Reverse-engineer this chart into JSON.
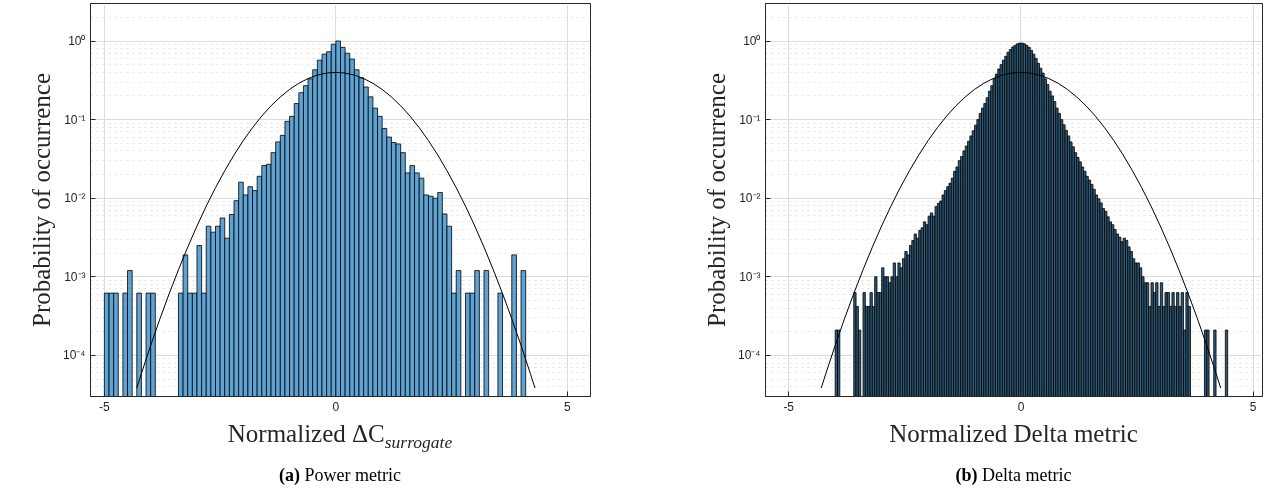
{
  "chart_data": [
    {
      "type": "histogram",
      "title": "(a) Power metric",
      "xlabel": "Normalized ΔC$_{surrogate}$",
      "ylabel": "Probability of occurrence",
      "color": "#5ea3d3",
      "log": true,
      "grid": true,
      "xlim": [
        -5.3,
        5.5
      ],
      "xticks": [
        -5,
        0,
        5
      ],
      "ylim": [
        3e-05,
        3
      ],
      "yticks": [
        {
          "value": 0.0001,
          "label": "10⁻⁴"
        },
        {
          "value": 0.001,
          "label": "10⁻³"
        },
        {
          "value": 0.01,
          "label": "10⁻²"
        },
        {
          "value": 0.1,
          "label": "10⁻¹"
        },
        {
          "value": 1,
          "label": "10⁰"
        }
      ],
      "bins": [
        -5.0,
        -4.9,
        -4.8,
        -4.7,
        -4.6,
        -4.5,
        -4.4,
        -4.3,
        -4.2,
        -4.1,
        -4.0,
        -3.9,
        -3.8,
        -3.7,
        -3.6,
        -3.5,
        -3.4,
        -3.3,
        -3.2,
        -3.1,
        -3.0,
        -2.9,
        -2.8,
        -2.7,
        -2.6,
        -2.5,
        -2.4,
        -2.3,
        -2.2,
        -2.1,
        -2.0,
        -1.9,
        -1.8,
        -1.7,
        -1.6,
        -1.5,
        -1.4,
        -1.3,
        -1.2,
        -1.1,
        -1.0,
        -0.9,
        -0.8,
        -0.7,
        -0.6,
        -0.5,
        -0.4,
        -0.3,
        -0.2,
        -0.1,
        0.0,
        0.1,
        0.2,
        0.3,
        0.4,
        0.5,
        0.6,
        0.7,
        0.8,
        0.9,
        1.0,
        1.1,
        1.2,
        1.3,
        1.4,
        1.5,
        1.6,
        1.7,
        1.8,
        1.9,
        2.0,
        2.1,
        2.2,
        2.3,
        2.4,
        2.5,
        2.6,
        2.7,
        2.8,
        2.9,
        3.0,
        3.1,
        3.2,
        3.3,
        3.4,
        3.5,
        3.6,
        3.7,
        3.8,
        3.9,
        4.0,
        4.1
      ],
      "values": [
        0.00062,
        0.00062,
        0.00062,
        null,
        0.00062,
        0.0012,
        null,
        0.00062,
        null,
        0.00062,
        0.00062,
        null,
        null,
        null,
        null,
        null,
        0.00062,
        0.0019,
        0.00062,
        0.00062,
        0.0025,
        0.00062,
        0.0044,
        0.0037,
        0.0044,
        0.0056,
        0.0031,
        0.0062,
        0.0093,
        0.016,
        0.011,
        0.014,
        0.0125,
        0.019,
        0.026,
        0.027,
        0.038,
        0.052,
        0.063,
        0.095,
        0.11,
        0.16,
        0.22,
        0.27,
        0.33,
        0.43,
        0.57,
        0.68,
        0.73,
        0.91,
        1.0,
        0.83,
        0.7,
        0.59,
        0.43,
        0.34,
        0.26,
        0.195,
        0.14,
        0.11,
        0.077,
        0.06,
        0.051,
        0.049,
        0.038,
        0.021,
        0.026,
        0.021,
        0.018,
        0.011,
        0.0106,
        0.01,
        0.0118,
        0.0063,
        0.0044,
        0.00062,
        0.0012,
        null,
        0.00062,
        0.00062,
        0.0012,
        null,
        0.0012,
        null,
        null,
        0.00062,
        null,
        null,
        0.0019,
        null,
        0.0012
      ],
      "series": [
        {
          "type": "line",
          "color": "#000000",
          "x": [
            -4.3,
            -4.2,
            -4.0,
            -3.8,
            -3.6,
            -3.4,
            -3.2,
            -3.0,
            -2.8,
            -2.6,
            -2.4,
            -2.2,
            -2.0,
            -1.8,
            -1.6,
            -1.4,
            -1.2,
            -1.0,
            -0.8,
            -0.6,
            -0.4,
            -0.2,
            0,
            0.2,
            0.4,
            0.6,
            0.8,
            1.0,
            1.2,
            1.4,
            1.6,
            1.8,
            2.0,
            2.2,
            2.4,
            2.6,
            2.8,
            3.0,
            3.2,
            3.4,
            3.6,
            3.8,
            4.0,
            4.2,
            4.3
          ],
          "values": [
            3.85e-05,
            5.89e-05,
            0.000134,
            0.000292,
            0.000612,
            0.00123,
            0.00238,
            0.00443,
            0.00792,
            0.0136,
            0.0224,
            0.0355,
            0.054,
            0.079,
            0.111,
            0.15,
            0.194,
            0.242,
            0.29,
            0.333,
            0.368,
            0.391,
            0.399,
            0.391,
            0.368,
            0.333,
            0.29,
            0.242,
            0.194,
            0.15,
            0.111,
            0.079,
            0.054,
            0.0355,
            0.0224,
            0.0136,
            0.00792,
            0.00443,
            0.00238,
            0.00123,
            0.000612,
            0.000292,
            0.000134,
            5.89e-05,
            3.85e-05
          ]
        }
      ]
    },
    {
      "type": "histogram",
      "title": "(b) Delta metric",
      "xlabel": "Normalized Delta metric",
      "ylabel": "Probability of occurrence",
      "color": "#2f5b78",
      "log": true,
      "grid": true,
      "xlim": [
        -5.5,
        5.2
      ],
      "xticks": [
        -5,
        0,
        5
      ],
      "ylim": [
        3e-05,
        3
      ],
      "yticks": [
        {
          "value": 0.0001,
          "label": "10⁻⁴"
        },
        {
          "value": 0.001,
          "label": "10⁻³"
        },
        {
          "value": 0.01,
          "label": "10⁻²"
        },
        {
          "value": 0.1,
          "label": "10⁻¹"
        },
        {
          "value": 1,
          "label": "10⁰"
        }
      ],
      "bins": [
        -4.0,
        -3.95,
        -3.9,
        -3.85,
        -3.8,
        -3.75,
        -3.7,
        -3.65,
        -3.6,
        -3.55,
        -3.5,
        -3.45,
        -3.4,
        -3.35,
        -3.3,
        -3.25,
        -3.2,
        -3.15,
        -3.1,
        -3.05,
        -3.0,
        -2.95,
        -2.9,
        -2.85,
        -2.8,
        -2.75,
        -2.7,
        -2.65,
        -2.6,
        -2.55,
        -2.5,
        -2.45,
        -2.4,
        -2.35,
        -2.3,
        -2.25,
        -2.2,
        -2.15,
        -2.1,
        -2.05,
        -2.0,
        -1.95,
        -1.9,
        -1.85,
        -1.8,
        -1.75,
        -1.7,
        -1.65,
        -1.6,
        -1.55,
        -1.5,
        -1.45,
        -1.4,
        -1.35,
        -1.3,
        -1.25,
        -1.2,
        -1.15,
        -1.1,
        -1.05,
        -1.0,
        -0.95,
        -0.9,
        -0.85,
        -0.8,
        -0.75,
        -0.7,
        -0.65,
        -0.6,
        -0.55,
        -0.5,
        -0.45,
        -0.4,
        -0.35,
        -0.3,
        -0.25,
        -0.2,
        -0.15,
        -0.1,
        -0.05,
        0.0,
        0.05,
        0.1,
        0.15,
        0.2,
        0.25,
        0.3,
        0.35,
        0.4,
        0.45,
        0.5,
        0.55,
        0.6,
        0.65,
        0.7,
        0.75,
        0.8,
        0.85,
        0.9,
        0.95,
        1.0,
        1.05,
        1.1,
        1.15,
        1.2,
        1.25,
        1.3,
        1.35,
        1.4,
        1.45,
        1.5,
        1.55,
        1.6,
        1.65,
        1.7,
        1.75,
        1.8,
        1.85,
        1.9,
        1.95,
        2.0,
        2.05,
        2.1,
        2.15,
        2.2,
        2.25,
        2.3,
        2.35,
        2.4,
        2.45,
        2.5,
        2.55,
        2.6,
        2.65,
        2.7,
        2.75,
        2.8,
        2.85,
        2.9,
        2.95,
        3.0,
        3.05,
        3.1,
        3.15,
        3.2,
        3.25,
        3.3,
        3.35,
        3.4,
        3.45,
        3.5,
        3.55,
        3.6,
        3.65,
        3.7,
        3.75,
        3.8,
        3.85,
        3.9,
        3.95,
        4.0,
        4.05,
        4.1,
        4.15,
        4.2,
        4.25,
        4.3,
        4.35,
        4.4,
        4.45
      ],
      "values": [
        0.00021,
        0.00021,
        null,
        null,
        null,
        null,
        null,
        null,
        0.00063,
        0.00042,
        0.00021,
        null,
        0.00063,
        0.00042,
        0.00042,
        0.00063,
        0.00042,
        0.001,
        0.00063,
        0.00063,
        0.0013,
        0.001,
        0.001,
        0.00084,
        0.001,
        0.0015,
        0.001,
        0.0015,
        0.0013,
        0.0017,
        0.0021,
        0.0019,
        0.0025,
        0.0029,
        0.0035,
        0.0031,
        0.0039,
        0.0042,
        0.005,
        0.0046,
        0.0059,
        0.0065,
        0.0059,
        0.0078,
        0.0086,
        0.0092,
        0.011,
        0.0125,
        0.014,
        0.0155,
        0.018,
        0.022,
        0.025,
        0.03,
        0.034,
        0.04,
        0.046,
        0.053,
        0.062,
        0.072,
        0.085,
        0.1,
        0.12,
        0.14,
        0.16,
        0.19,
        0.23,
        0.27,
        0.33,
        0.38,
        0.44,
        0.5,
        0.57,
        0.64,
        0.72,
        0.78,
        0.84,
        0.88,
        0.92,
        0.94,
        0.94,
        0.92,
        0.88,
        0.83,
        0.76,
        0.68,
        0.6,
        0.52,
        0.45,
        0.39,
        0.33,
        0.28,
        0.23,
        0.2,
        0.17,
        0.14,
        0.12,
        0.1,
        0.086,
        0.073,
        0.062,
        0.052,
        0.045,
        0.038,
        0.033,
        0.029,
        0.025,
        0.022,
        0.019,
        0.017,
        0.015,
        0.013,
        0.011,
        0.0098,
        0.0087,
        0.0074,
        0.0068,
        0.0058,
        0.005,
        0.0046,
        0.004,
        0.0035,
        0.0032,
        0.0028,
        0.0031,
        0.0029,
        0.0024,
        0.0021,
        0.0017,
        0.0015,
        0.0015,
        0.0013,
        0.001,
        0.00084,
        0.00084,
        0.00042,
        0.00084,
        0.00063,
        0.00084,
        0.00042,
        0.00084,
        0.00042,
        0.00063,
        0.00063,
        0.00042,
        0.00063,
        0.00042,
        0.00063,
        0.00042,
        0.00063,
        0.00021,
        0.00063,
        0.00042,
        null,
        null,
        null,
        null,
        null,
        null,
        0.00021,
        0.00021,
        null,
        null,
        0.00021,
        null,
        null,
        null,
        null,
        0.00021
      ],
      "series": [
        {
          "type": "line",
          "color": "#000000",
          "x": [
            -4.3,
            -4.2,
            -4.0,
            -3.8,
            -3.6,
            -3.4,
            -3.2,
            -3.0,
            -2.8,
            -2.6,
            -2.4,
            -2.2,
            -2.0,
            -1.8,
            -1.6,
            -1.4,
            -1.2,
            -1.0,
            -0.8,
            -0.6,
            -0.4,
            -0.2,
            0,
            0.2,
            0.4,
            0.6,
            0.8,
            1.0,
            1.2,
            1.4,
            1.6,
            1.8,
            2.0,
            2.2,
            2.4,
            2.6,
            2.8,
            3.0,
            3.2,
            3.4,
            3.6,
            3.8,
            4.0,
            4.2,
            4.3
          ],
          "values": [
            3.85e-05,
            5.89e-05,
            0.000134,
            0.000292,
            0.000612,
            0.00123,
            0.00238,
            0.00443,
            0.00792,
            0.0136,
            0.0224,
            0.0355,
            0.054,
            0.079,
            0.111,
            0.15,
            0.194,
            0.242,
            0.29,
            0.333,
            0.368,
            0.391,
            0.399,
            0.391,
            0.368,
            0.333,
            0.29,
            0.242,
            0.194,
            0.15,
            0.111,
            0.079,
            0.054,
            0.0355,
            0.0224,
            0.0136,
            0.00792,
            0.00443,
            0.00238,
            0.00123,
            0.000612,
            0.000292,
            0.000134,
            5.89e-05,
            3.85e-05
          ]
        }
      ]
    }
  ]
}
